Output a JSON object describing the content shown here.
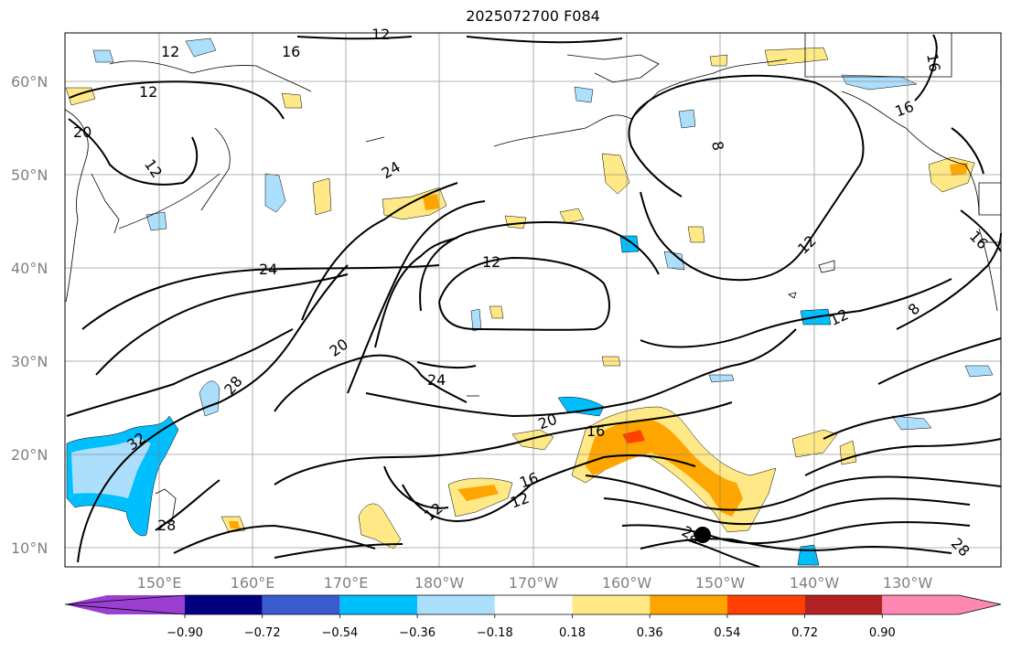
{
  "title": "2025072700 F084",
  "map": {
    "lat_labels": [
      "60°N",
      "50°N",
      "40°N",
      "30°N",
      "20°N",
      "10°N"
    ],
    "lon_labels": [
      "150°E",
      "160°E",
      "170°E",
      "180°W",
      "170°W",
      "160°W",
      "150°W",
      "140°W",
      "130°W"
    ],
    "contour_labels": [
      {
        "text": "12"
      },
      {
        "text": "16"
      },
      {
        "text": "12"
      },
      {
        "text": "12"
      },
      {
        "text": "20"
      },
      {
        "text": "24"
      },
      {
        "text": "24"
      },
      {
        "text": "12"
      },
      {
        "text": "12"
      },
      {
        "text": "20"
      },
      {
        "text": "24"
      },
      {
        "text": "28"
      },
      {
        "text": "32"
      },
      {
        "text": "28"
      },
      {
        "text": "20"
      },
      {
        "text": "16"
      },
      {
        "text": "16"
      },
      {
        "text": "12"
      },
      {
        "text": "12"
      },
      {
        "text": "28"
      },
      {
        "text": "28"
      },
      {
        "text": "8"
      },
      {
        "text": "16"
      },
      {
        "text": "16"
      },
      {
        "text": "12"
      },
      {
        "text": "8"
      },
      {
        "text": "16"
      },
      {
        "text": "12"
      }
    ],
    "marker": "storm center dot"
  },
  "colorbar": {
    "tick_labels": [
      "−0.90",
      "−0.72",
      "−0.54",
      "−0.36",
      "−0.18",
      "0.18",
      "0.36",
      "0.54",
      "0.72",
      "0.90"
    ],
    "colors": [
      "#9a3fd1",
      "#000080",
      "#3a5bd0",
      "#00bfff",
      "#acdffc",
      "#ffffff",
      "#ffe987",
      "#ffa500",
      "#ff4000",
      "#b22222",
      "#ff88b2"
    ]
  }
}
